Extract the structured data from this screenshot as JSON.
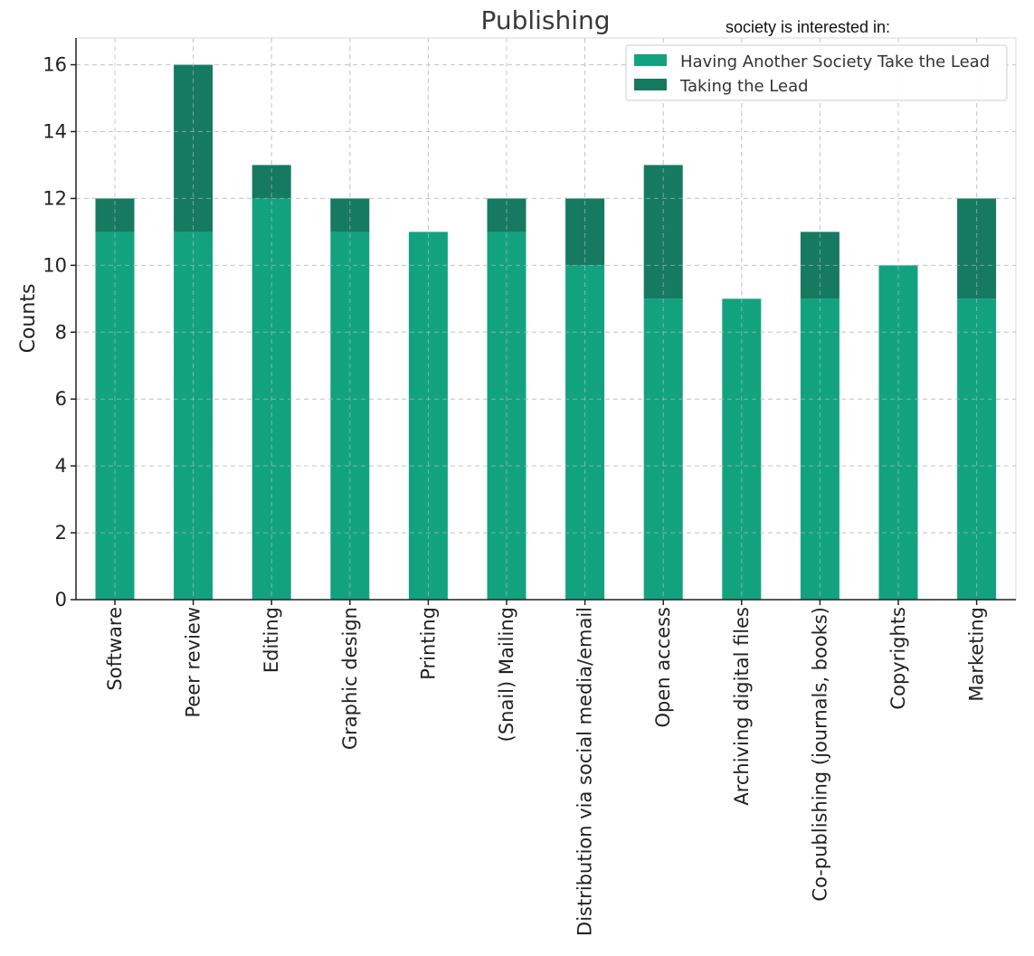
{
  "overlay_note": "society is interested in:",
  "colors": {
    "having_another": "#12a37e",
    "taking_lead": "#157a60",
    "grid": "#c8c8c8",
    "axis": "#222222"
  },
  "chart_data": {
    "type": "bar",
    "stacked": true,
    "title": "Publishing",
    "xlabel": "",
    "ylabel": "Counts",
    "ylim": [
      0,
      16.8
    ],
    "yticks": [
      0,
      2,
      4,
      6,
      8,
      10,
      12,
      14,
      16
    ],
    "grid": true,
    "legend_position": "top-right",
    "categories": [
      "Software",
      "Peer review",
      "Editing",
      "Graphic design",
      "Printing",
      "(Snail) Mailing",
      "Distribution via social media/email",
      "Open access",
      "Archiving digital files",
      "Co-publishing (journals, books)",
      "Copyrights",
      "Marketing"
    ],
    "series": [
      {
        "name": "Having Another Society Take the Lead",
        "color": "#12a37e",
        "values": [
          11,
          11,
          12,
          11,
          11,
          11,
          10,
          9,
          9,
          9,
          10,
          9
        ]
      },
      {
        "name": "Taking the Lead",
        "color": "#157a60",
        "values": [
          1,
          5,
          1,
          1,
          0,
          1,
          2,
          4,
          0,
          2,
          0,
          3
        ]
      }
    ]
  }
}
